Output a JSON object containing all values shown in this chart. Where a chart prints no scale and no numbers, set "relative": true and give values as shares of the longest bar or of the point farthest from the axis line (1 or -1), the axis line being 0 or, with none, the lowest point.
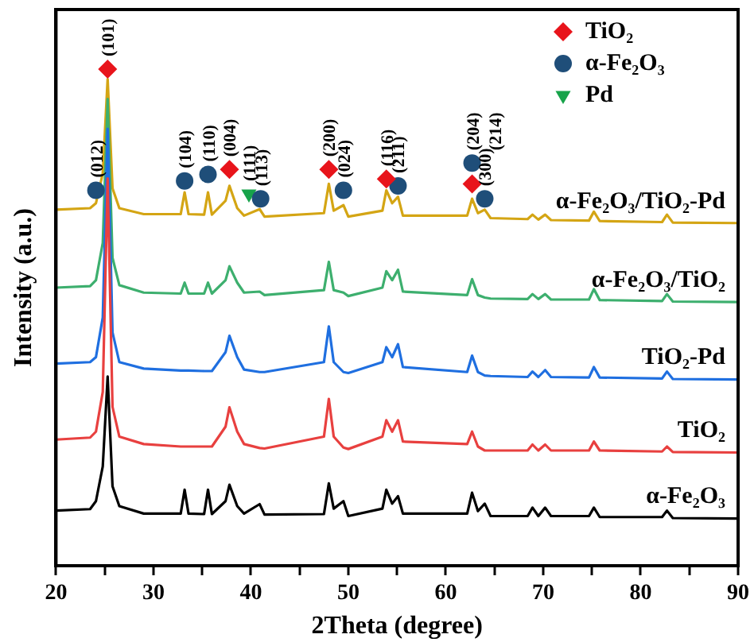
{
  "chart_data": {
    "type": "line",
    "relative": true,
    "xlabel": "2Theta (degree)",
    "ylabel": "Intensity (a.u.)",
    "legend": "top right",
    "marker": "none",
    "xlim": [
      20,
      90
    ],
    "xticks": [
      20,
      {
        "value": 25,
        "label": null
      },
      30,
      {
        "value": 35,
        "label": null
      },
      40,
      {
        "value": 45,
        "label": null
      },
      50,
      {
        "value": 55,
        "label": null
      },
      60,
      {
        "value": 65,
        "label": null
      },
      70,
      {
        "value": 75,
        "label": null
      },
      80,
      {
        "value": 85,
        "label": null
      },
      90
    ],
    "x": [
      20,
      23.5,
      24.1,
      24.8,
      25.3,
      25.8,
      26.5,
      29,
      32.8,
      33.2,
      33.6,
      35.2,
      35.6,
      36,
      37.4,
      37.8,
      38.6,
      39.3,
      40.9,
      41.4,
      47.5,
      48,
      48.5,
      49.5,
      50,
      53.5,
      53.9,
      54.5,
      55.1,
      55.6,
      62.2,
      62.7,
      63.3,
      64,
      64.6,
      68.4,
      68.9,
      69.5,
      70.2,
      70.8,
      74.7,
      75.2,
      75.8,
      82.2,
      82.7,
      83.3,
      90
    ],
    "series": [
      {
        "name": "α-Fe₂O₃",
        "color": "#000000",
        "values": [
          0.111,
          0.114,
          0.13,
          0.2,
          0.381,
          0.16,
          0.12,
          0.105,
          0.105,
          0.153,
          0.105,
          0.104,
          0.153,
          0.104,
          0.13,
          0.163,
          0.12,
          0.105,
          0.124,
          0.103,
          0.104,
          0.166,
          0.115,
          0.13,
          0.1,
          0.115,
          0.153,
          0.125,
          0.14,
          0.105,
          0.105,
          0.147,
          0.11,
          0.125,
          0.1,
          0.1,
          0.117,
          0.1,
          0.117,
          0.1,
          0.1,
          0.117,
          0.098,
          0.098,
          0.111,
          0.096,
          0.095
        ]
      },
      {
        "name": "TiO₂",
        "color": "#e8403f",
        "values": [
          0.254,
          0.258,
          0.27,
          0.35,
          0.78,
          0.32,
          0.26,
          0.245,
          0.24,
          0.24,
          0.24,
          0.24,
          0.24,
          0.24,
          0.28,
          0.319,
          0.27,
          0.245,
          0.237,
          0.236,
          0.26,
          0.336,
          0.26,
          0.238,
          0.235,
          0.26,
          0.293,
          0.27,
          0.293,
          0.25,
          0.245,
          0.27,
          0.24,
          0.232,
          0.232,
          0.232,
          0.244,
          0.232,
          0.244,
          0.232,
          0.232,
          0.25,
          0.232,
          0.23,
          0.24,
          0.229,
          0.228
        ]
      },
      {
        "name": "TiO₂-Pd",
        "color": "#1f6fe0",
        "values": [
          0.407,
          0.41,
          0.42,
          0.5,
          0.88,
          0.47,
          0.41,
          0.397,
          0.393,
          0.393,
          0.393,
          0.392,
          0.392,
          0.392,
          0.43,
          0.463,
          0.42,
          0.395,
          0.39,
          0.39,
          0.41,
          0.482,
          0.41,
          0.39,
          0.388,
          0.41,
          0.44,
          0.42,
          0.446,
          0.4,
          0.39,
          0.423,
          0.39,
          0.383,
          0.382,
          0.38,
          0.391,
          0.38,
          0.394,
          0.38,
          0.379,
          0.4,
          0.379,
          0.377,
          0.391,
          0.376,
          0.375
        ]
      },
      {
        "name": "α-Fe₂O₃/TiO₂",
        "color": "#3daf6e",
        "values": [
          0.56,
          0.563,
          0.575,
          0.65,
          0.94,
          0.62,
          0.565,
          0.55,
          0.548,
          0.57,
          0.548,
          0.548,
          0.57,
          0.548,
          0.575,
          0.603,
          0.57,
          0.55,
          0.552,
          0.545,
          0.555,
          0.612,
          0.555,
          0.55,
          0.543,
          0.56,
          0.593,
          0.575,
          0.596,
          0.552,
          0.545,
          0.577,
          0.545,
          0.54,
          0.538,
          0.537,
          0.547,
          0.537,
          0.547,
          0.536,
          0.536,
          0.557,
          0.535,
          0.533,
          0.547,
          0.532,
          0.531
        ]
      },
      {
        "name": "α-Fe₂O₃/TiO₂-Pd",
        "color": "#d4a514",
        "values": [
          0.717,
          0.72,
          0.73,
          0.79,
          0.98,
          0.76,
          0.72,
          0.708,
          0.708,
          0.752,
          0.708,
          0.707,
          0.752,
          0.707,
          0.735,
          0.765,
          0.72,
          0.705,
          0.718,
          0.703,
          0.71,
          0.769,
          0.715,
          0.726,
          0.703,
          0.715,
          0.756,
          0.73,
          0.743,
          0.705,
          0.705,
          0.739,
          0.71,
          0.717,
          0.7,
          0.698,
          0.707,
          0.697,
          0.707,
          0.696,
          0.695,
          0.713,
          0.694,
          0.692,
          0.707,
          0.691,
          0.69
        ]
      },
      {
        "name": "TiO₂",
        "type": "scatter",
        "marker": "diamond",
        "color": "#e8141b",
        "x": [
          25.3,
          37.8,
          48.0,
          53.9,
          62.7
        ],
        "values": [
          1.0,
          0.798,
          0.798,
          0.779,
          0.769
        ]
      },
      {
        "name": "α-Fe₂O₃",
        "type": "scatter",
        "marker": "circle",
        "color": "#1f4e79",
        "x": [
          24.1,
          33.2,
          35.6,
          41.0,
          49.5,
          55.1,
          62.7,
          64.0
        ],
        "values": [
          0.756,
          0.775,
          0.788,
          0.739,
          0.756,
          0.765,
          0.811,
          0.739
        ]
      },
      {
        "name": "Pd",
        "type": "scatter",
        "marker": "triangle",
        "color": "#17a34a",
        "x": [
          39.8
        ],
        "values": [
          0.749
        ]
      }
    ],
    "annotations": [
      {
        "text": "(012)",
        "x": 24.1,
        "y": 0.756
      },
      {
        "text": "(101)",
        "x": 25.3,
        "y": 1.0
      },
      {
        "text": "(104)",
        "x": 33.2,
        "y": 0.775
      },
      {
        "text": "(110)",
        "x": 35.6,
        "y": 0.788
      },
      {
        "text": "(004)",
        "x": 37.8,
        "y": 0.798
      },
      {
        "text": "(111)",
        "x": 39.8,
        "y": 0.749
      },
      {
        "text": "(113)",
        "x": 41.0,
        "y": 0.739
      },
      {
        "text": "(200)",
        "x": 48.0,
        "y": 0.798
      },
      {
        "text": "(024)",
        "x": 49.5,
        "y": 0.756
      },
      {
        "text": "(116)",
        "x": 53.9,
        "y": 0.779
      },
      {
        "text": "(211)",
        "x": 55.1,
        "y": 0.765
      },
      {
        "text": "(204)",
        "x": 62.7,
        "y": 0.811
      },
      "(214)",
      {
        "text": "(300)",
        "x": 64.0,
        "y": 0.739
      }
    ]
  }
}
